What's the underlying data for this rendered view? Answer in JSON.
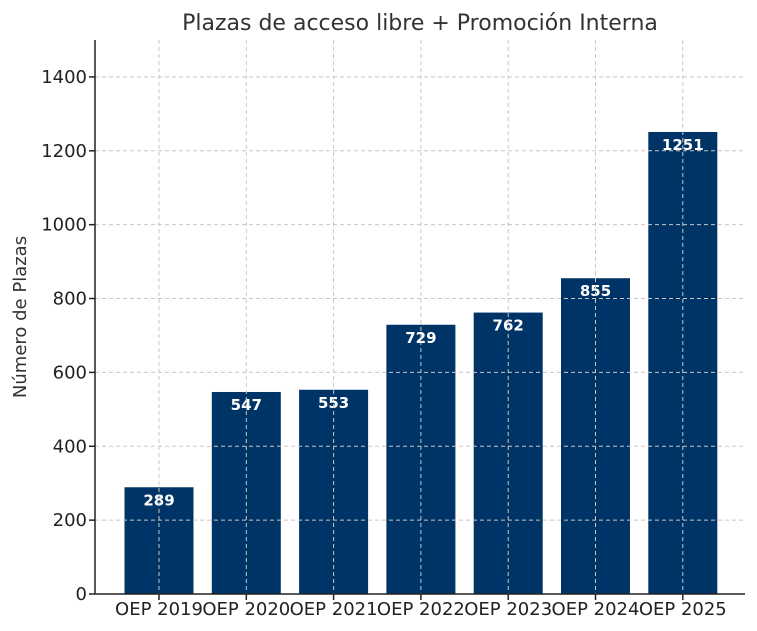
{
  "chart_data": {
    "type": "bar",
    "title": "Plazas de acceso libre + Promoción Interna",
    "xlabel": "",
    "ylabel": "Número de Plazas",
    "categories": [
      "OEP 2019",
      "OEP 2020",
      "OEP 2021",
      "OEP 2022",
      "OEP 2023",
      "OEP 2024",
      "OEP 2025"
    ],
    "values": [
      289,
      547,
      553,
      729,
      762,
      855,
      1251
    ],
    "data_labels": [
      "289",
      "547",
      "553",
      "729",
      "762",
      "855",
      "1251"
    ],
    "yticks": [
      0,
      200,
      400,
      600,
      800,
      1000,
      1200,
      1400
    ],
    "ylim": [
      0,
      1500
    ],
    "grid": true,
    "bar_color": "#003366"
  }
}
